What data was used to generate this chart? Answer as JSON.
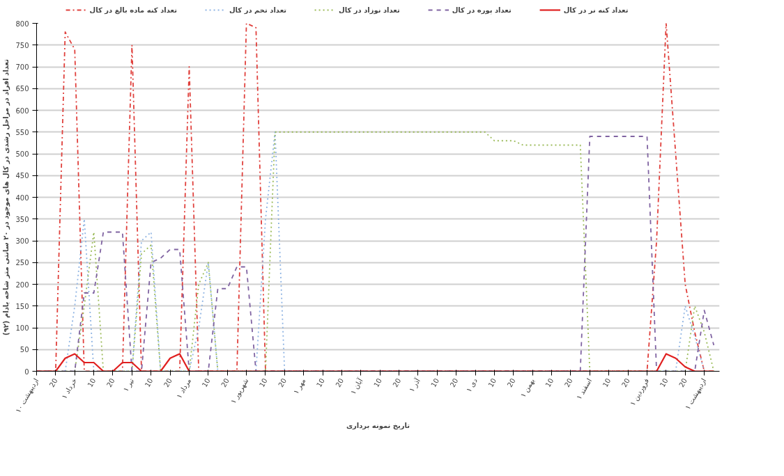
{
  "chart_data": {
    "type": "line",
    "xlabel": "تاریخ نمونه برداری",
    "ylabel": "تعداد افراد در مراحل رشدی در کال های موجود در ۲۰ سانتی متر شاخه بادام (۹۲)",
    "categories": [
      "۱۰ اردیبهشت",
      null,
      "20",
      null,
      "۱ خرداد",
      null,
      "10",
      null,
      "20",
      null,
      "۱ تیر",
      null,
      "10",
      null,
      "20",
      null,
      "۱ مرداد",
      null,
      "10",
      null,
      "20",
      null,
      "۱ شهریور",
      null,
      "10",
      null,
      "20",
      null,
      "۱ مهر",
      null,
      "10",
      null,
      "20",
      null,
      "۱ آبان",
      null,
      "10",
      null,
      "20",
      null,
      "۱ آذر",
      null,
      "10",
      null,
      "20",
      null,
      "۱ دی",
      null,
      "10",
      null,
      "20",
      null,
      "۱ بهمن",
      null,
      "10",
      null,
      "20",
      null,
      "۱ اسفند",
      null,
      "10",
      null,
      "20",
      null,
      "۱ فروردین",
      null,
      "10",
      null,
      "20",
      null,
      "۱ اردیبهشت",
      null
    ],
    "ylim": [
      0,
      800
    ],
    "yticks": [
      0,
      50,
      100,
      150,
      200,
      250,
      300,
      350,
      400,
      450,
      500,
      550,
      600,
      650,
      700,
      750,
      800
    ],
    "grid": "y",
    "legend": "top",
    "series": [
      {
        "name": "تعداد کنه ماده بالغ در کال",
        "color": "#e0403c",
        "line_style": "dashdot",
        "values": [
          0,
          0,
          0,
          780,
          740,
          0,
          0,
          0,
          0,
          0,
          750,
          0,
          0,
          0,
          0,
          0,
          700,
          0,
          0,
          0,
          0,
          0,
          800,
          790,
          0,
          0,
          0,
          0,
          0,
          0,
          0,
          0,
          0,
          0,
          0,
          0,
          0,
          0,
          0,
          0,
          0,
          0,
          0,
          0,
          0,
          0,
          0,
          0,
          0,
          0,
          0,
          0,
          0,
          0,
          0,
          0,
          0,
          0,
          0,
          0,
          0,
          0,
          0,
          0,
          0,
          300,
          800,
          500,
          200,
          90,
          0,
          0
        ]
      },
      {
        "name": "تعداد تخم در کال",
        "color": "#8fb4e3",
        "line_style": "dotted",
        "values": [
          null,
          null,
          null,
          0,
          150,
          350,
          0,
          null,
          null,
          null,
          0,
          300,
          320,
          0,
          null,
          null,
          0,
          100,
          250,
          0,
          null,
          null,
          null,
          0,
          350,
          550,
          0,
          null,
          null,
          null,
          null,
          null,
          null,
          null,
          null,
          null,
          null,
          null,
          null,
          null,
          null,
          null,
          null,
          null,
          null,
          null,
          null,
          null,
          null,
          null,
          null,
          null,
          null,
          null,
          null,
          null,
          null,
          null,
          null,
          null,
          null,
          null,
          null,
          null,
          null,
          null,
          null,
          0,
          150,
          80,
          0,
          null
        ]
      },
      {
        "name": "تعداد نوزاد در کال",
        "color": "#9bbb59",
        "line_style": "dotted",
        "values": [
          0,
          0,
          0,
          0,
          0,
          150,
          320,
          0,
          0,
          0,
          0,
          270,
          290,
          0,
          0,
          0,
          0,
          200,
          250,
          0,
          0,
          0,
          0,
          0,
          0,
          550,
          550,
          550,
          550,
          550,
          550,
          550,
          550,
          550,
          550,
          550,
          550,
          550,
          550,
          550,
          550,
          550,
          550,
          550,
          550,
          550,
          550,
          550,
          530,
          530,
          530,
          520,
          520,
          520,
          520,
          520,
          520,
          520,
          0,
          0,
          0,
          0,
          0,
          0,
          0,
          0,
          0,
          0,
          0,
          150,
          90,
          0
        ]
      },
      {
        "name": "تعداد پوره در کال",
        "color": "#8064a2",
        "line_style": "dashed",
        "values": [
          0,
          0,
          0,
          0,
          0,
          180,
          180,
          320,
          320,
          320,
          0,
          0,
          250,
          260,
          280,
          280,
          0,
          0,
          0,
          190,
          190,
          240,
          240,
          0,
          0,
          0,
          0,
          0,
          0,
          0,
          0,
          0,
          0,
          0,
          0,
          0,
          0,
          0,
          0,
          0,
          0,
          0,
          0,
          0,
          0,
          0,
          0,
          0,
          0,
          0,
          0,
          0,
          0,
          0,
          0,
          0,
          0,
          0,
          540,
          540,
          540,
          540,
          540,
          540,
          540,
          0,
          0,
          0,
          0,
          0,
          140,
          60
        ]
      },
      {
        "name": "تعداد کنه نر در کال",
        "color": "#e02020",
        "line_style": "solid",
        "values": [
          0,
          0,
          0,
          30,
          40,
          20,
          20,
          0,
          0,
          20,
          20,
          0,
          0,
          0,
          30,
          40,
          0,
          0,
          0,
          0,
          0,
          0,
          0,
          0,
          0,
          0,
          0,
          0,
          0,
          0,
          0,
          0,
          0,
          0,
          0,
          0,
          0,
          0,
          0,
          0,
          0,
          0,
          0,
          0,
          0,
          0,
          0,
          0,
          0,
          0,
          0,
          0,
          0,
          0,
          0,
          0,
          0,
          0,
          0,
          0,
          0,
          0,
          0,
          0,
          0,
          0,
          40,
          30,
          10,
          0,
          0,
          0
        ]
      }
    ]
  }
}
